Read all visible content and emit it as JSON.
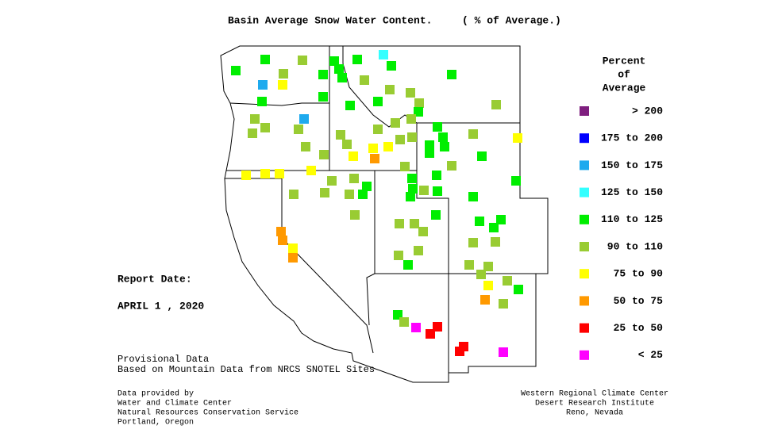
{
  "header": {
    "title": "Basin Average Snow Water Content.",
    "subtitle": "( % of Average.)"
  },
  "legend": {
    "title": [
      "Percent",
      "of",
      "Average"
    ],
    "entries": [
      {
        "label": "> 200",
        "color": "#7f1f7f"
      },
      {
        "label": "175 to 200",
        "color": "#0000ff"
      },
      {
        "label": "150 to 175",
        "color": "#1eaaee"
      },
      {
        "label": "125 to 150",
        "color": "#33ffff"
      },
      {
        "label": "110 to 125",
        "color": "#00ee00"
      },
      {
        "label": "90 to 110",
        "color": "#99cc33"
      },
      {
        "label": "75 to 90",
        "color": "#ffff00"
      },
      {
        "label": "50 to 75",
        "color": "#ff9900"
      },
      {
        "label": "25 to 50",
        "color": "#ff0000"
      },
      {
        "label": "< 25",
        "color": "#ff00ff"
      }
    ]
  },
  "report": {
    "label": "Report Date:",
    "date": "APRIL 1 , 2020"
  },
  "provisional": [
    "Provisional Data",
    "Based on Mountain Data from NRCS SNOTEL Sites"
  ],
  "provided_by": [
    "Data provided by",
    "Water and Climate Center",
    "Natural Resources Conservation Service",
    "Portland, Oregon"
  ],
  "publisher": [
    "Western Regional Climate Center",
    "Desert Research Institute",
    "Reno, Nevada"
  ]
}
